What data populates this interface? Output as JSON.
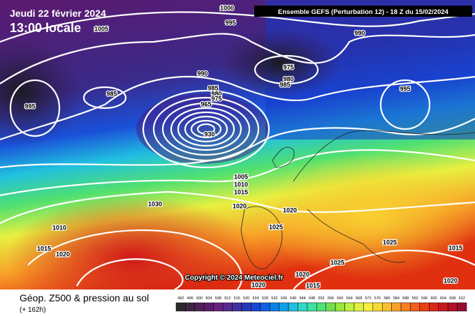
{
  "header": {
    "date": "Jeudi 22 février 2024",
    "time": "13:00 locale",
    "run": "Ensemble GEFS  (Perturbation 12)  -  18 Z du 15/02/2024"
  },
  "footer": {
    "title": "Géop. Z500 & pression au sol",
    "lead": "(+ 162h)",
    "copyright": "Copyright © 2024 Meteociel.fr"
  },
  "isobar_labels": [
    1000,
    1005,
    995,
    990,
    990,
    975,
    980,
    985,
    985,
    995,
    985,
    980,
    975,
    965,
    930,
    995,
    1005,
    1010,
    1015,
    1020,
    1020,
    1030,
    1010,
    1025,
    1015,
    1020,
    1025,
    1015,
    1025,
    1020,
    1020,
    1015,
    1020
  ],
  "colorbar": {
    "ticks": [
      492,
      496,
      500,
      504,
      508,
      512,
      516,
      520,
      524,
      528,
      532,
      536,
      540,
      544,
      548,
      552,
      556,
      560,
      564,
      568,
      572,
      576,
      580,
      584,
      588,
      592,
      596,
      600,
      604,
      608,
      612
    ],
    "colors": [
      "#2a2a2a",
      "#3d2540",
      "#4f1f55",
      "#5e1a6a",
      "#6a2080",
      "#5a2890",
      "#4030a0",
      "#2838b8",
      "#1848d0",
      "#1060e0",
      "#0c80e8",
      "#10a0e8",
      "#20c0e0",
      "#30d8c8",
      "#40e0a0",
      "#50e078",
      "#70e050",
      "#98e840",
      "#c0f040",
      "#e0f040",
      "#f8f040",
      "#f8d838",
      "#f8c030",
      "#f8a028",
      "#f88020",
      "#f06018",
      "#e84010",
      "#d82818",
      "#c81820",
      "#b01028",
      "#980c30"
    ]
  }
}
